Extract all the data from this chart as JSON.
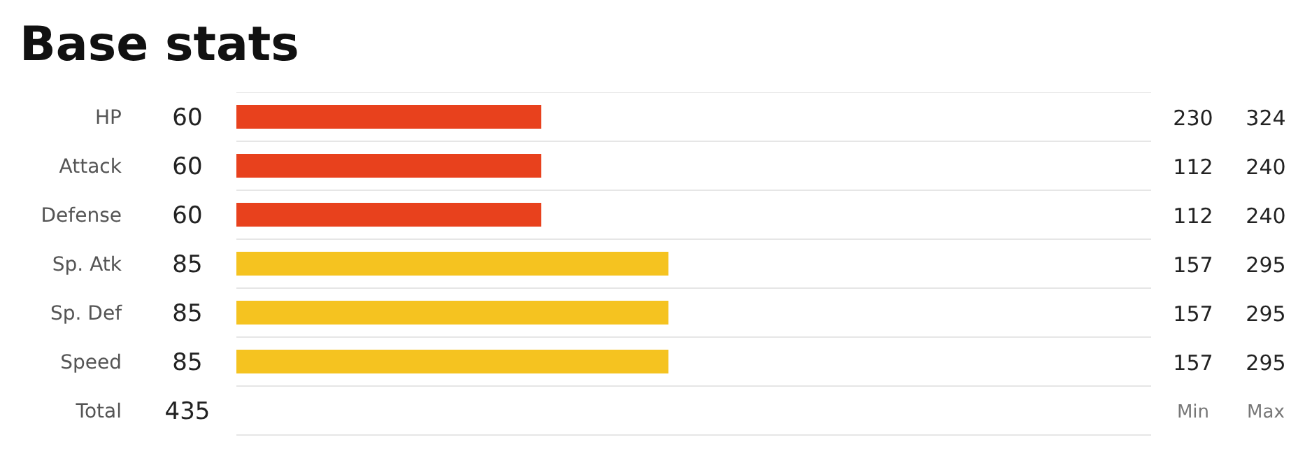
{
  "chart_data": [
    {
      "type": "bar",
      "orientation": "horizontal",
      "title": "Base stats",
      "categories": [
        "HP",
        "Attack",
        "Defense",
        "Sp. Atk",
        "Sp. Def",
        "Speed",
        "Total"
      ],
      "xlim": [
        0,
        180
      ],
      "grid": "y",
      "series": [
        {
          "values": [
            60,
            60,
            60,
            85,
            85,
            85,
            null
          ],
          "colors": [
            "#e8411d",
            "#e8411d",
            "#e8411d",
            "#f5c320",
            "#f5c320",
            "#f5c320",
            null
          ],
          "value_labels": [
            "60",
            "60",
            "60",
            "85",
            "85",
            "85",
            "435"
          ]
        }
      ]
    },
    {
      "type": "other",
      "annotations": [
        "230",
        "324",
        "112",
        "240",
        "112",
        "240",
        "157",
        "295",
        "157",
        "295",
        "157",
        "295",
        "Min",
        "Max"
      ]
    }
  ]
}
